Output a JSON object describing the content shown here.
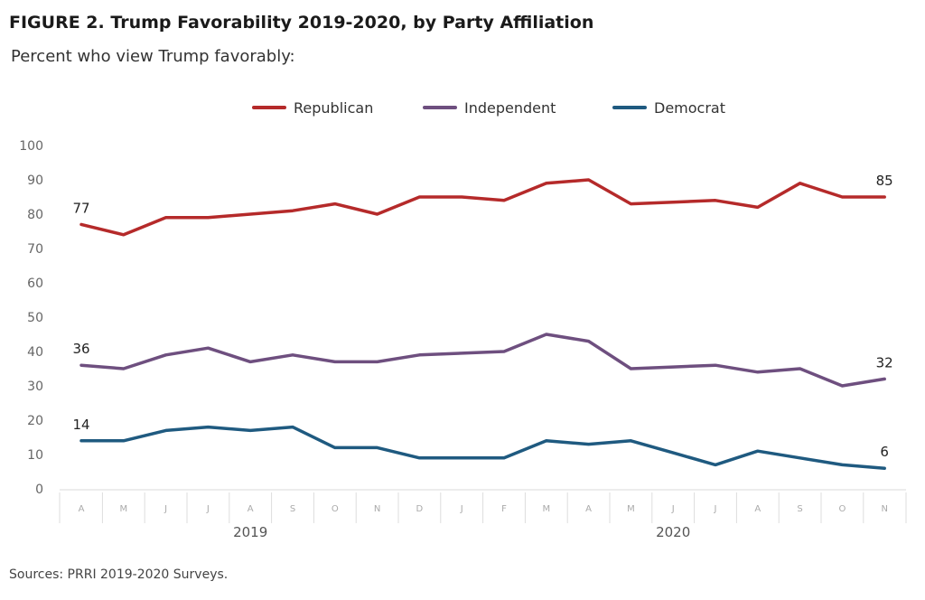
{
  "title": "FIGURE 2. Trump Favorability 2019-2020, by Party Affiliation",
  "subtitle": "Percent who view Trump favorably:",
  "source": "Sources: PRRI 2019-2020 Surveys.",
  "chart_data": {
    "type": "line",
    "title": "FIGURE 2. Trump Favorability 2019-2020, by Party Affiliation",
    "subtitle": "Percent who view Trump favorably:",
    "categories": [
      "A",
      "M",
      "J",
      "J",
      "A",
      "S",
      "O",
      "N",
      "D",
      "J",
      "F",
      "M",
      "A",
      "M",
      "J",
      "J",
      "A",
      "S",
      "O",
      "N"
    ],
    "year_groups": [
      {
        "label": "2019",
        "start": 0,
        "end": 8
      },
      {
        "label": "2020",
        "start": 9,
        "end": 19
      }
    ],
    "series": [
      {
        "name": "Republican",
        "color": "#b52a2a",
        "values": [
          77,
          74,
          79,
          79,
          80,
          81,
          83,
          80,
          85,
          85,
          84,
          89,
          90,
          83,
          83.5,
          84,
          82,
          89,
          85,
          85
        ]
      },
      {
        "name": "Independent",
        "color": "#6e4f7f",
        "values": [
          36,
          35,
          39,
          41,
          37,
          39,
          37,
          37,
          39,
          39.5,
          40,
          45,
          43,
          35,
          35.5,
          36,
          34,
          35,
          30,
          32
        ]
      },
      {
        "name": "Democrat",
        "color": "#1f5a80",
        "values": [
          14,
          14,
          17,
          18,
          17,
          18,
          12,
          12,
          9,
          9,
          9,
          14,
          13,
          14,
          10.5,
          7,
          11,
          9,
          7,
          6
        ]
      }
    ],
    "data_labels": [
      {
        "series": "Republican",
        "index": 0,
        "text": "77"
      },
      {
        "series": "Republican",
        "index": 19,
        "text": "85"
      },
      {
        "series": "Independent",
        "index": 0,
        "text": "36"
      },
      {
        "series": "Independent",
        "index": 19,
        "text": "32"
      },
      {
        "series": "Democrat",
        "index": 0,
        "text": "14"
      },
      {
        "series": "Democrat",
        "index": 19,
        "text": "6"
      }
    ],
    "xlabel": "",
    "ylabel": "",
    "ylim": [
      0,
      100
    ],
    "yticks": [
      0,
      10,
      20,
      30,
      40,
      50,
      60,
      70,
      80,
      90,
      100
    ],
    "grid": false,
    "legend_position": "top-center"
  }
}
